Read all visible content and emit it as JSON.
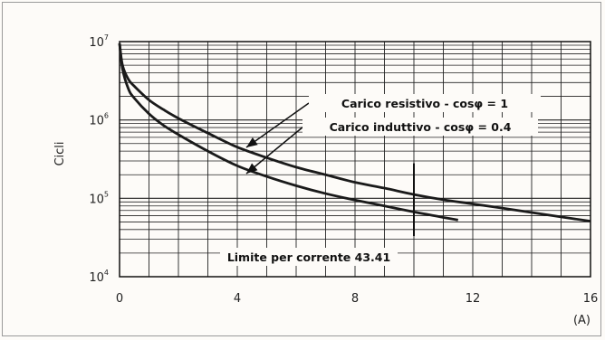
{
  "chart_data": {
    "type": "line",
    "title": "",
    "xlabel": "",
    "x_unit_label": "(A)",
    "ylabel": "Cicli",
    "xlim": [
      0,
      16
    ],
    "ylim": [
      10000,
      10000000
    ],
    "y_scale": "log",
    "grid": true,
    "x_ticks": [
      0,
      4,
      8,
      12,
      16
    ],
    "y_ticks": [
      {
        "base": "10",
        "exp": "4",
        "value": 10000
      },
      {
        "base": "10",
        "exp": "5",
        "value": 100000
      },
      {
        "base": "10",
        "exp": "6",
        "value": 1000000
      },
      {
        "base": "10",
        "exp": "7",
        "value": 10000000
      }
    ],
    "series": [
      {
        "name": "Carico resistivo - cosφ = 1",
        "x": [
          0,
          0.1,
          0.3,
          0.5,
          1,
          1.5,
          2,
          3,
          4,
          5,
          6,
          7,
          8,
          9,
          10,
          11,
          12,
          13,
          14,
          15,
          16
        ],
        "y": [
          9500000,
          5000000,
          3300000,
          2700000,
          1800000,
          1350000,
          1050000,
          680000,
          450000,
          330000,
          250000,
          200000,
          160000,
          135000,
          112000,
          96000,
          85000,
          75000,
          66000,
          58000,
          51000
        ]
      },
      {
        "name": "Carico induttivo - cosφ = 0.4",
        "x": [
          0,
          0.1,
          0.3,
          0.5,
          1,
          1.5,
          2,
          3,
          4,
          5,
          6,
          7,
          8,
          9,
          10,
          10.5,
          11,
          11.5
        ],
        "y": [
          9500000,
          4500000,
          2500000,
          1900000,
          1200000,
          850000,
          650000,
          400000,
          260000,
          190000,
          145000,
          115000,
          95000,
          80000,
          67000,
          62000,
          57000,
          53000
        ]
      }
    ],
    "annotations": {
      "resistive_label": "Carico resistivo - cosφ = 1",
      "inductive_label": "Carico induttivo - cosφ = 0.4",
      "limit_label": "Limite per corrente 43.41",
      "limit_x": 10
    }
  }
}
